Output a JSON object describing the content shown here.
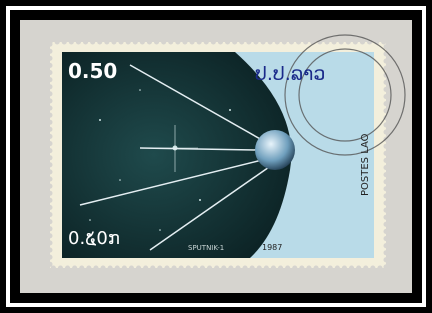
{
  "stamp": {
    "face_value": "0.50",
    "country": "ປ.ປ.ລາວ",
    "postes": "POSTES LAO",
    "face_value_lao": "0.໕0ກ",
    "caption": "SPUTNIK-1",
    "year": "1987"
  }
}
